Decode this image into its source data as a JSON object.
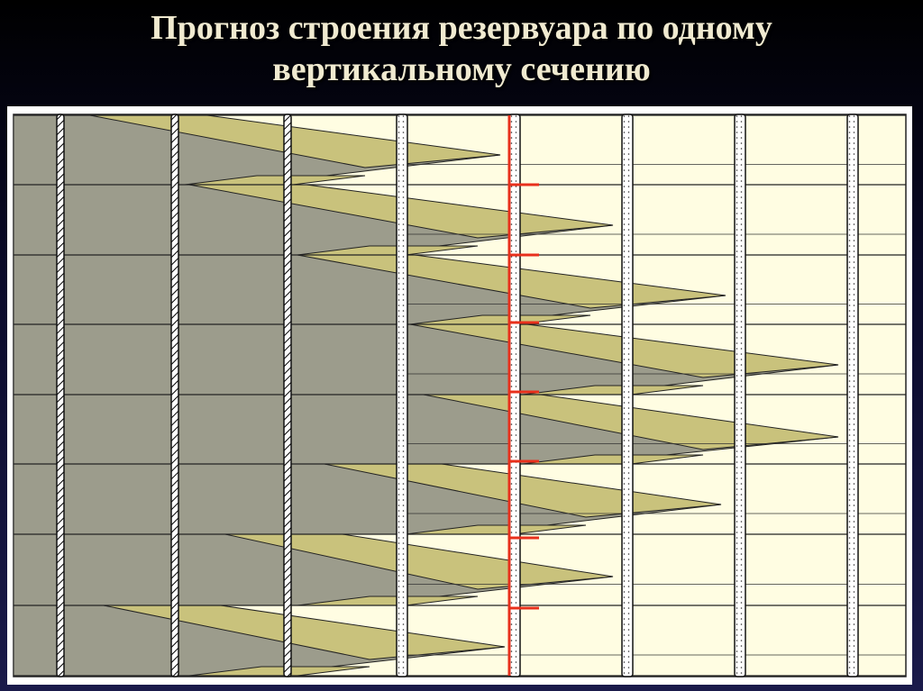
{
  "header": {
    "title_lines": [
      "Прогноз строения резервуара по одному",
      "вертикальному сечению"
    ]
  }
}
